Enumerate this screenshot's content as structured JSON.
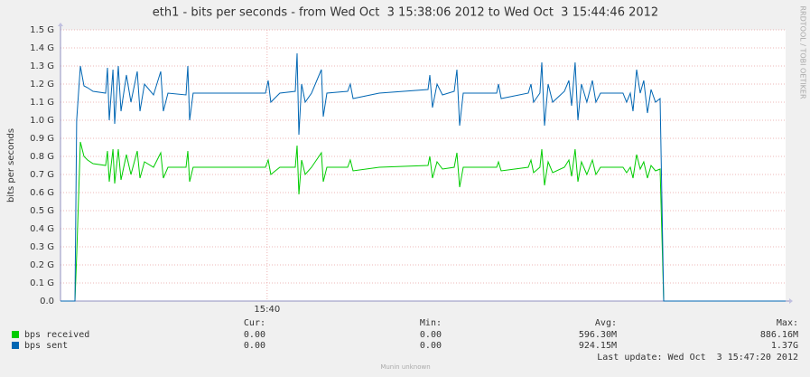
{
  "chart_data": {
    "type": "line",
    "title": "eth1 - bits per seconds - from Wed Oct  3 15:38:06 2012 to Wed Oct  3 15:44:46 2012",
    "ylabel": "bits per seconds",
    "side_text": "RRDTOOL / TOBI OETIKER",
    "grid": true,
    "xlim": [
      38.1,
      44.767
    ],
    "xticks": [
      {
        "value": 40,
        "label": "15:40"
      }
    ],
    "ylim": [
      0,
      1.5
    ],
    "yticks": [
      {
        "value": 0,
        "label": "0.0"
      },
      {
        "value": 0.1,
        "label": "0.1 G"
      },
      {
        "value": 0.2,
        "label": "0.2 G"
      },
      {
        "value": 0.3,
        "label": "0.3 G"
      },
      {
        "value": 0.4,
        "label": "0.4 G"
      },
      {
        "value": 0.5,
        "label": "0.5 G"
      },
      {
        "value": 0.6,
        "label": "0.6 G"
      },
      {
        "value": 0.7,
        "label": "0.7 G"
      },
      {
        "value": 0.8,
        "label": "0.8 G"
      },
      {
        "value": 0.9,
        "label": "0.9 G"
      },
      {
        "value": 1.0,
        "label": "1.0 G"
      },
      {
        "value": 1.1,
        "label": "1.1 G"
      },
      {
        "value": 1.2,
        "label": "1.2 G"
      },
      {
        "value": 1.3,
        "label": "1.3 G"
      },
      {
        "value": 1.4,
        "label": "1.4 G"
      },
      {
        "value": 1.5,
        "label": "1.5 G"
      }
    ],
    "x": [
      38.1,
      38.233,
      38.249,
      38.283,
      38.316,
      38.349,
      38.399,
      38.515,
      38.532,
      38.548,
      38.582,
      38.598,
      38.631,
      38.656,
      38.706,
      38.748,
      38.806,
      38.831,
      38.872,
      38.955,
      39.022,
      39.046,
      39.088,
      39.254,
      39.271,
      39.287,
      39.32,
      39.985,
      40.01,
      40.034,
      40.117,
      40.259,
      40.275,
      40.292,
      40.317,
      40.35,
      40.408,
      40.499,
      40.516,
      40.549,
      40.74,
      40.764,
      40.79,
      41.031,
      41.479,
      41.496,
      41.52,
      41.562,
      41.612,
      41.72,
      41.745,
      41.77,
      41.803,
      42.11,
      42.127,
      42.152,
      42.401,
      42.426,
      42.45,
      42.508,
      42.525,
      42.55,
      42.583,
      42.625,
      42.733,
      42.774,
      42.799,
      42.832,
      42.857,
      42.89,
      42.94,
      42.99,
      43.023,
      43.065,
      43.272,
      43.305,
      43.339,
      43.364,
      43.397,
      43.43,
      43.463,
      43.497,
      43.53,
      43.571,
      43.613,
      43.646,
      44.767
    ],
    "series": [
      {
        "name": "bps received",
        "color": "#00cc00",
        "axis": "y",
        "values": [
          0,
          0,
          0.25,
          0.88,
          0.8,
          0.78,
          0.76,
          0.75,
          0.83,
          0.66,
          0.84,
          0.65,
          0.84,
          0.67,
          0.81,
          0.7,
          0.83,
          0.68,
          0.77,
          0.74,
          0.82,
          0.68,
          0.74,
          0.74,
          0.83,
          0.66,
          0.74,
          0.74,
          0.78,
          0.7,
          0.74,
          0.74,
          0.86,
          0.59,
          0.78,
          0.7,
          0.74,
          0.82,
          0.66,
          0.74,
          0.74,
          0.78,
          0.72,
          0.74,
          0.75,
          0.8,
          0.68,
          0.77,
          0.73,
          0.74,
          0.82,
          0.63,
          0.74,
          0.74,
          0.77,
          0.72,
          0.74,
          0.78,
          0.71,
          0.74,
          0.84,
          0.64,
          0.77,
          0.71,
          0.74,
          0.78,
          0.69,
          0.84,
          0.66,
          0.77,
          0.7,
          0.78,
          0.7,
          0.74,
          0.74,
          0.71,
          0.74,
          0.68,
          0.81,
          0.73,
          0.77,
          0.68,
          0.75,
          0.72,
          0.73,
          0,
          0
        ],
        "cur": "0.00",
        "min": "0.00",
        "avg": "596.30M",
        "max": "886.16M"
      },
      {
        "name": "bps sent",
        "color": "#0066b3",
        "axis": "y",
        "values": [
          0,
          0,
          1.0,
          1.3,
          1.19,
          1.18,
          1.16,
          1.15,
          1.29,
          1.0,
          1.28,
          0.98,
          1.3,
          1.05,
          1.25,
          1.1,
          1.27,
          1.05,
          1.2,
          1.14,
          1.27,
          1.05,
          1.15,
          1.14,
          1.3,
          1.0,
          1.15,
          1.15,
          1.22,
          1.1,
          1.15,
          1.16,
          1.37,
          0.92,
          1.2,
          1.1,
          1.15,
          1.28,
          1.02,
          1.15,
          1.16,
          1.2,
          1.12,
          1.15,
          1.17,
          1.25,
          1.07,
          1.2,
          1.14,
          1.16,
          1.28,
          0.97,
          1.15,
          1.15,
          1.2,
          1.12,
          1.15,
          1.2,
          1.1,
          1.15,
          1.32,
          0.97,
          1.2,
          1.1,
          1.16,
          1.22,
          1.08,
          1.32,
          1.0,
          1.2,
          1.1,
          1.22,
          1.1,
          1.15,
          1.15,
          1.1,
          1.15,
          1.05,
          1.28,
          1.15,
          1.22,
          1.04,
          1.17,
          1.1,
          1.12,
          0,
          0
        ],
        "cur": "0.00",
        "min": "0.00",
        "avg": "924.15M",
        "max": "1.37G"
      }
    ],
    "stat_headers": [
      "Cur:",
      "Min:",
      "Avg:",
      "Max:"
    ],
    "last_update": "Last update: Wed Oct  3 15:47:20 2012",
    "footer": "Munin unknown"
  }
}
